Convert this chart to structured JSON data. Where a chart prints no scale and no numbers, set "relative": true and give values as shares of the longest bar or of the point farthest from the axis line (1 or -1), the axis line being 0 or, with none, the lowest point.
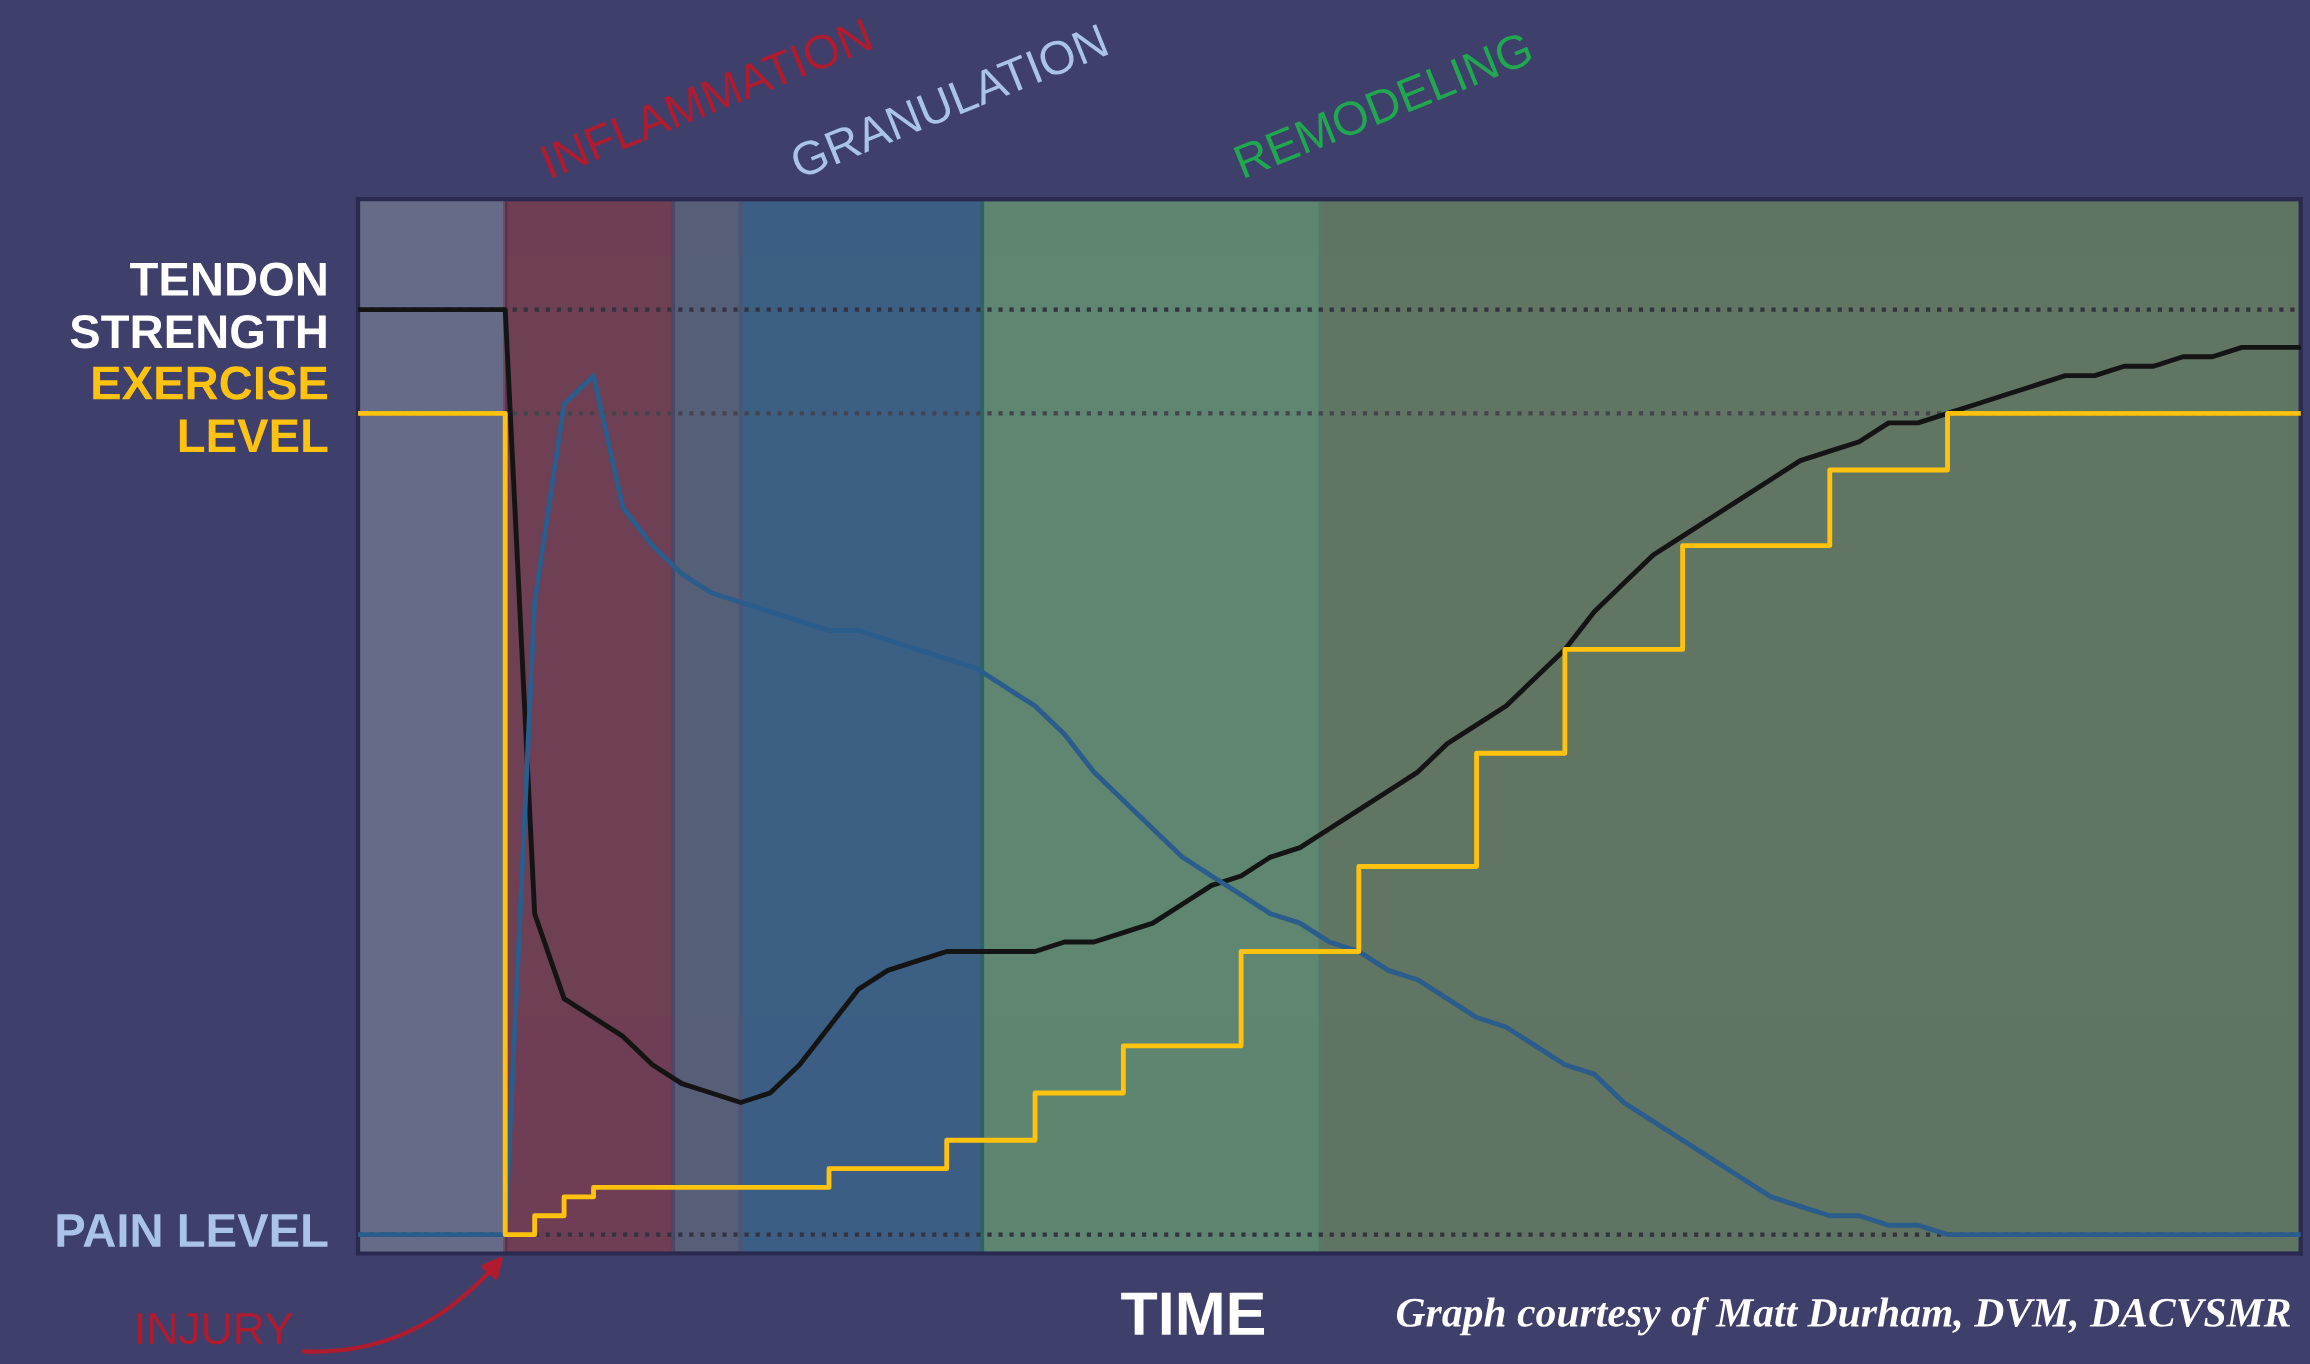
{
  "chart_data": {
    "type": "line",
    "relative": true,
    "xlabel": "TIME",
    "grid": false,
    "categories": [
      null,
      null,
      null,
      null,
      null,
      null,
      null,
      null,
      null,
      null,
      null,
      null,
      null,
      null,
      null,
      null,
      null,
      null,
      null,
      null,
      null,
      null,
      null,
      null,
      null,
      null,
      null,
      null,
      null,
      null,
      null,
      null,
      null,
      null,
      null,
      null,
      null,
      null,
      null,
      null,
      null,
      null,
      null,
      null,
      null,
      null,
      null,
      null,
      null,
      null,
      null,
      null,
      null,
      null,
      null,
      null,
      null,
      null,
      null,
      null,
      null,
      null,
      null,
      null,
      null,
      null,
      null
    ],
    "series": [
      {
        "name": "TENDON\nSTRENGTH",
        "color": "#141414",
        "values": [
          1.0,
          1.0,
          1.0,
          1.0,
          1.0,
          1.0,
          0.36,
          0.27,
          0.25,
          0.23,
          0.2,
          0.18,
          0.17,
          0.16,
          0.17,
          0.2,
          0.24,
          0.28,
          0.3,
          0.31,
          0.32,
          0.32,
          0.32,
          0.32,
          0.33,
          0.33,
          0.34,
          0.35,
          0.37,
          0.39,
          0.4,
          0.42,
          0.43,
          0.45,
          0.47,
          0.49,
          0.51,
          0.54,
          0.56,
          0.58,
          0.61,
          0.64,
          0.68,
          0.71,
          0.74,
          0.76,
          0.78,
          0.8,
          0.82,
          0.84,
          0.85,
          0.86,
          0.88,
          0.88,
          0.89,
          0.9,
          0.91,
          0.92,
          0.93,
          0.93,
          0.94,
          0.94,
          0.95,
          0.95,
          0.96,
          0.96,
          0.96
        ]
      },
      {
        "name": "EXERCISE\nLEVEL",
        "type": "step",
        "color": "#ffc20e",
        "values": [
          0.89,
          0.89,
          0.89,
          0.89,
          0.89,
          0.02,
          0.04,
          0.06,
          0.07,
          0.07,
          0.07,
          0.07,
          0.07,
          0.07,
          0.07,
          0.07,
          0.09,
          0.09,
          0.09,
          0.09,
          0.12,
          0.12,
          0.12,
          0.17,
          0.17,
          0.17,
          0.22,
          0.22,
          0.22,
          0.22,
          0.32,
          0.32,
          0.32,
          0.32,
          0.41,
          0.41,
          0.41,
          0.41,
          0.53,
          0.53,
          0.53,
          0.64,
          0.64,
          0.64,
          0.64,
          0.75,
          0.75,
          0.75,
          0.75,
          0.75,
          0.83,
          0.83,
          0.83,
          0.83,
          0.89,
          0.89,
          0.89,
          0.89,
          0.89,
          0.89,
          0.89,
          0.89,
          0.89,
          0.89,
          0.89,
          0.89,
          0.89
        ]
      },
      {
        "name": "PAIN LEVEL",
        "color": "#2a5c8c",
        "values": [
          0.02,
          0.02,
          0.02,
          0.02,
          0.02,
          0.02,
          0.69,
          0.9,
          0.93,
          0.79,
          0.75,
          0.72,
          0.7,
          0.69,
          0.68,
          0.67,
          0.66,
          0.66,
          0.65,
          0.64,
          0.63,
          0.62,
          0.6,
          0.58,
          0.55,
          0.51,
          0.48,
          0.45,
          0.42,
          0.4,
          0.38,
          0.36,
          0.35,
          0.33,
          0.32,
          0.3,
          0.29,
          0.27,
          0.25,
          0.24,
          0.22,
          0.2,
          0.19,
          0.16,
          0.14,
          0.12,
          0.1,
          0.08,
          0.06,
          0.05,
          0.04,
          0.04,
          0.03,
          0.03,
          0.02,
          0.02,
          0.02,
          0.02,
          0.02,
          0.02,
          0.02,
          0.02,
          0.02,
          0.02,
          0.02,
          0.02,
          0.02
        ]
      }
    ],
    "ref_lines": [
      {
        "axis": "y",
        "value": 1.0,
        "color": "#333340",
        "line_style": "dotted"
      },
      {
        "axis": "y",
        "value": 0.89,
        "color": "#44444f",
        "line_style": "dotted"
      },
      {
        "axis": "y",
        "value": 0.02,
        "color": "#333340",
        "line_style": "dotted"
      }
    ],
    "annotations": [
      "INFLAMMATION",
      "GRANULATION",
      "REMODELING",
      "INJURY",
      "Graph courtesy of Matt Durham, DVM, DACVSMR"
    ]
  }
}
